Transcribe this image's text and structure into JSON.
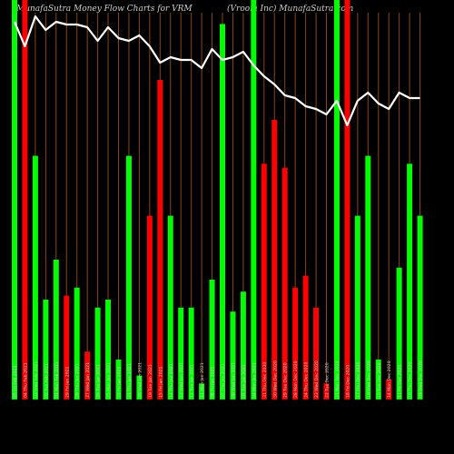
{
  "header": {
    "left_text": "MunafaSutra  Money Flow  Charts for VRM",
    "right_text": "(Vroom Inc) MunafaSutra.com"
  },
  "colors": {
    "background": "#000000",
    "up": "#00ff00",
    "down": "#ff0000",
    "line": "#ffffff",
    "separator": "#8b4513",
    "date_text": "#cfcfcf"
  },
  "chart_data": {
    "type": "bar",
    "ylim": [
      0,
      100
    ],
    "bars": [
      {
        "date": "05 Fri Feb 2021",
        "value": 100,
        "dir": "up"
      },
      {
        "date": "04 Thu Feb 2021",
        "value": 100,
        "dir": "down"
      },
      {
        "date": "03 Wed Feb 2021",
        "value": 61,
        "dir": "up"
      },
      {
        "date": "02 Tue Feb 2021",
        "value": 25,
        "dir": "up"
      },
      {
        "date": "01 Mon Feb 2021",
        "value": 35,
        "dir": "up"
      },
      {
        "date": "29 Fri Jan 2021",
        "value": 26,
        "dir": "down"
      },
      {
        "date": "28 Thu Jan 2021",
        "value": 28,
        "dir": "up"
      },
      {
        "date": "27 Wed Jan 2021",
        "value": 12,
        "dir": "down"
      },
      {
        "date": "26 Tue Jan 2021",
        "value": 23,
        "dir": "up"
      },
      {
        "date": "25 Mon Jan 2021",
        "value": 25,
        "dir": "up"
      },
      {
        "date": "22 Fri Jan 2021",
        "value": 10,
        "dir": "up"
      },
      {
        "date": "21 Thu Jan 2021",
        "value": 61,
        "dir": "up"
      },
      {
        "date": "20 Wed Jan 2021",
        "value": 6,
        "dir": "up"
      },
      {
        "date": "19 Tue Jan 2021",
        "value": 46,
        "dir": "down"
      },
      {
        "date": "15 Fri Jan 2021",
        "value": 80,
        "dir": "down"
      },
      {
        "date": "14 Thu Jan 2021",
        "value": 46,
        "dir": "up"
      },
      {
        "date": "13 Wed Jan 2021",
        "value": 23,
        "dir": "up"
      },
      {
        "date": "12 Tue Jan 2021",
        "value": 23,
        "dir": "up"
      },
      {
        "date": "11 Mon Jan 2021",
        "value": 4,
        "dir": "up"
      },
      {
        "date": "08 Fri Jan 2021",
        "value": 30,
        "dir": "up"
      },
      {
        "date": "07 Thu Jan 2021",
        "value": 94,
        "dir": "up"
      },
      {
        "date": "06 Wed Jan 2021",
        "value": 22,
        "dir": "up"
      },
      {
        "date": "05 Tue Jan 2021",
        "value": 27,
        "dir": "up"
      },
      {
        "date": "04 Mon Jan 2021",
        "value": 100,
        "dir": "up"
      },
      {
        "date": "31 Thu Dec 2020",
        "value": 59,
        "dir": "down"
      },
      {
        "date": "30 Wed Dec 2020",
        "value": 70,
        "dir": "down"
      },
      {
        "date": "29 Tue Dec 2020",
        "value": 58,
        "dir": "down"
      },
      {
        "date": "28 Mon Dec 2020",
        "value": 28,
        "dir": "down"
      },
      {
        "date": "24 Thu Dec 2020",
        "value": 31,
        "dir": "down"
      },
      {
        "date": "23 Wed Dec 2020",
        "value": 23,
        "dir": "down"
      },
      {
        "date": "22 Tue Dec 2020",
        "value": 4,
        "dir": "down"
      },
      {
        "date": "21 Mon Dec 2020",
        "value": 100,
        "dir": "up"
      },
      {
        "date": "18 Fri Dec 2020",
        "value": 100,
        "dir": "down"
      },
      {
        "date": "17 Thu Dec 2020",
        "value": 46,
        "dir": "up"
      },
      {
        "date": "16 Wed Dec 2020",
        "value": 61,
        "dir": "up"
      },
      {
        "date": "15 Tue Dec 2020",
        "value": 10,
        "dir": "up"
      },
      {
        "date": "14 Mon Dec 2020",
        "value": 5,
        "dir": "down"
      },
      {
        "date": "11 Fri Dec 2020",
        "value": 33,
        "dir": "up"
      },
      {
        "date": "10 Thu Dec 2020",
        "value": 59,
        "dir": "up"
      },
      {
        "date": "09 Wed Dec 2020",
        "value": 46,
        "dir": "up"
      }
    ],
    "line": [
      92,
      83,
      94,
      89,
      92,
      91,
      91,
      90,
      85,
      90,
      86,
      85,
      87,
      83,
      77,
      79,
      78,
      78,
      75,
      82,
      78,
      79,
      81,
      76,
      72,
      69,
      65,
      64,
      61,
      60,
      58,
      63,
      54,
      63,
      66,
      62,
      60,
      66,
      64,
      64
    ]
  }
}
